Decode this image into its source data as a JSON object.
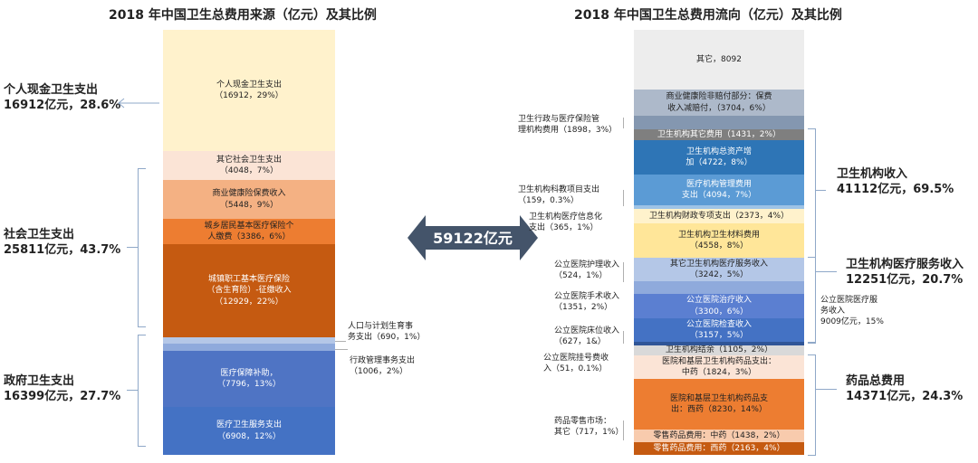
{
  "left": {
    "title": "2018 年中国卫生总费用来源（亿元）及其比例",
    "segments": [
      {
        "l1": "个人现金卫生支出",
        "l2": "（16912，29%）"
      },
      {
        "l1": "其它社会卫生支出",
        "l2": "（4048，7%）"
      },
      {
        "l1": "商业健康险保费收入",
        "l2": "（5448，9%）"
      },
      {
        "l1": "城乡居民基本医疗保险个",
        "l2": "人缴费（3386，6%）"
      },
      {
        "l1": "城镇职工基本医疗保险",
        "l2": "（含生育险）-征缴收入",
        "l3": "（12929，22%）"
      },
      {
        "l1": "",
        "l2": ""
      },
      {
        "l1": "",
        "l2": ""
      },
      {
        "l1": "医疗保障补助，",
        "l2": "（7796，13%）"
      },
      {
        "l1": "医疗卫生服务支出",
        "l2": "（6908，12%）"
      }
    ],
    "groups": [
      {
        "l1": "个人现金卫生支出",
        "l2": "16912亿元，28.6%"
      },
      {
        "l1": "社会卫生支出",
        "l2": "25811亿元，43.7%"
      },
      {
        "l1": "政府卫生支出",
        "l2": "16399亿元，27.7%"
      }
    ],
    "side": [
      {
        "l1": "人口与计划生育事",
        "l2": "务支出（690，1%）"
      },
      {
        "l1": "行政管理事务支出",
        "l2": "（1006，2%）"
      }
    ]
  },
  "center": {
    "total": "59122亿元"
  },
  "right": {
    "title": "2018 年中国卫生总费用流向（亿元）及其比例",
    "segments": [
      {
        "l1": "其它，8092",
        "l2": ""
      },
      {
        "l1": "商业健康险非赔付部分：保费",
        "l2": "收入减赔付，（3704，6%）"
      },
      {
        "l1": "",
        "l2": ""
      },
      {
        "l1": "卫生机构其它费用（1431，2%）",
        "l2": ""
      },
      {
        "l1": "卫生机构总资产增",
        "l2": "加（4722，8%）"
      },
      {
        "l1": "医疗机构管理费用",
        "l2": "支出（4094，7%）"
      },
      {
        "l1": "",
        "l2": ""
      },
      {
        "l1": "卫生机构财政专项支出（2373，4%）",
        "l2": ""
      },
      {
        "l1": "卫生机构卫生材料费用",
        "l2": "（4558，8%）"
      },
      {
        "l1": "其它卫生机构医疗服务收入",
        "l2": "（3242，5%）"
      },
      {
        "l1": "",
        "l2": ""
      },
      {
        "l1": "公立医院治疗收入",
        "l2": "（3300，6%）"
      },
      {
        "l1": "公立医院检查收入",
        "l2": "（3157，5%）"
      },
      {
        "l1": "",
        "l2": ""
      },
      {
        "l1": "卫生机构结余（1105，2%）",
        "l2": ""
      },
      {
        "l1": "医院和基层卫生机构药品支出：",
        "l2": "中药（1824，3%）"
      },
      {
        "l1": "医院和基层卫生机构药品支",
        "l2": "出：西药（8230，14%）"
      },
      {
        "l1": "零售药品费用：中药（1438，2%）",
        "l2": ""
      },
      {
        "l1": "零售药品费用：西药（2163，4%）",
        "l2": ""
      }
    ],
    "left_labels": [
      {
        "l1": "卫生行政与医疗保险管",
        "l2": "理机构费用（1898，3%）"
      },
      {
        "l1": "卫生机构科教项目支出",
        "l2": "（159，0.3%）"
      },
      {
        "l1": "卫生机构医疗信息化",
        "l2": "支出（365，1%）"
      },
      {
        "l1": "公立医院护理收入",
        "l2": "（524，1%）"
      },
      {
        "l1": "公立医院手术收入",
        "l2": "（1351，2%）"
      },
      {
        "l1": "公立医院床位收入",
        "l2": "（627，1&）"
      },
      {
        "l1": "公立医院挂号费收",
        "l2": "入（51，0.1%）"
      },
      {
        "l1": "药品零售市场：",
        "l2": "其它（717，1%）"
      }
    ],
    "groups": [
      {
        "l1": "卫生机构收入",
        "l2": "41112亿元，69.5%"
      },
      {
        "l1": "卫生机构医疗服务收入",
        "l2": "12251亿元，20.7%"
      },
      {
        "l1": "药品总费用",
        "l2": "14371亿元，24.3%"
      }
    ],
    "sub_group": {
      "l1": "公立医院医疗服",
      "l2": "务收入",
      "l3": "9009亿元，15%"
    }
  }
}
